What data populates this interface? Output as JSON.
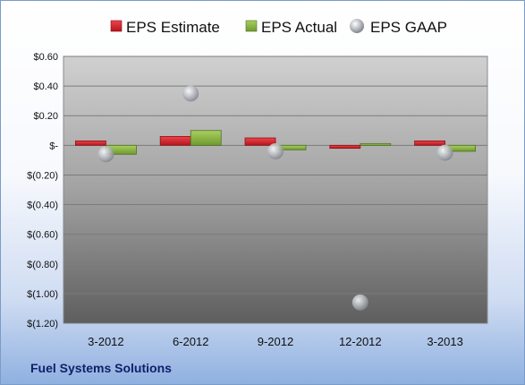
{
  "company": "Fuel Systems Solutions",
  "colors": {
    "estimate": "#d9262e",
    "actual": "#8cbb43",
    "gaap": "#b8bcc4"
  },
  "chart_data": {
    "type": "bar",
    "categories": [
      "3-2012",
      "6-2012",
      "9-2012",
      "12-2012",
      "3-2013"
    ],
    "series": [
      {
        "name": "EPS Estimate",
        "kind": "bar",
        "values": [
          0.03,
          0.06,
          0.05,
          -0.02,
          0.03
        ]
      },
      {
        "name": "EPS Actual",
        "kind": "bar",
        "values": [
          -0.06,
          0.1,
          -0.03,
          0.0,
          -0.04
        ]
      },
      {
        "name": "EPS GAAP",
        "kind": "marker",
        "values": [
          -0.06,
          0.35,
          -0.04,
          -1.06,
          -0.05
        ]
      }
    ],
    "ylim": [
      -1.2,
      0.6
    ],
    "ytick_values": [
      0.6,
      0.4,
      0.2,
      0,
      -0.2,
      -0.4,
      -0.6,
      -0.8,
      -1.0,
      -1.2
    ],
    "ytick_labels": [
      "$0.60",
      "$0.40",
      "$0.20",
      "$-",
      "$(0.20)",
      "$(0.40)",
      "$(0.60)",
      "$(0.80)",
      "$(1.00)",
      "$(1.20)"
    ],
    "grid": true,
    "legend": "top"
  }
}
